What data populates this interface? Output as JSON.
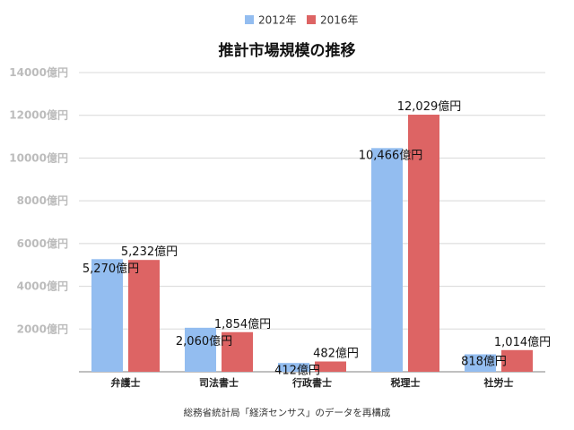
{
  "chart_data": {
    "type": "bar",
    "title": "推計市場規模の推移",
    "categories": [
      "弁護士",
      "司法書士",
      "行政書士",
      "税理士",
      "社労士"
    ],
    "series": [
      {
        "name": "2012年",
        "color": "#93bdf0",
        "values": [
          5270,
          2060,
          412,
          10466,
          818
        ],
        "labels": [
          "5,270億円",
          "2,060億円",
          "412億円",
          "10,466億円",
          "818億円"
        ]
      },
      {
        "name": "2016年",
        "color": "#dd6464",
        "values": [
          5232,
          1854,
          482,
          12029,
          1014
        ],
        "labels": [
          "5,232億円",
          "1,854億円",
          "482億円",
          "12,029億円",
          "1,014億円"
        ]
      }
    ],
    "ylim": [
      0,
      14000
    ],
    "yticks": [
      0,
      2000,
      4000,
      6000,
      8000,
      10000,
      12000,
      14000
    ],
    "ytick_labels": [
      "",
      "2000億円",
      "4000億円",
      "6000億円",
      "8000億円",
      "10000億円",
      "12000億円",
      "14000億円"
    ],
    "xlabel": "",
    "ylabel": "",
    "grid": true,
    "legend_position": "top-center",
    "source_note": "総務省統計局「経済センサス」のデータを再構成"
  }
}
